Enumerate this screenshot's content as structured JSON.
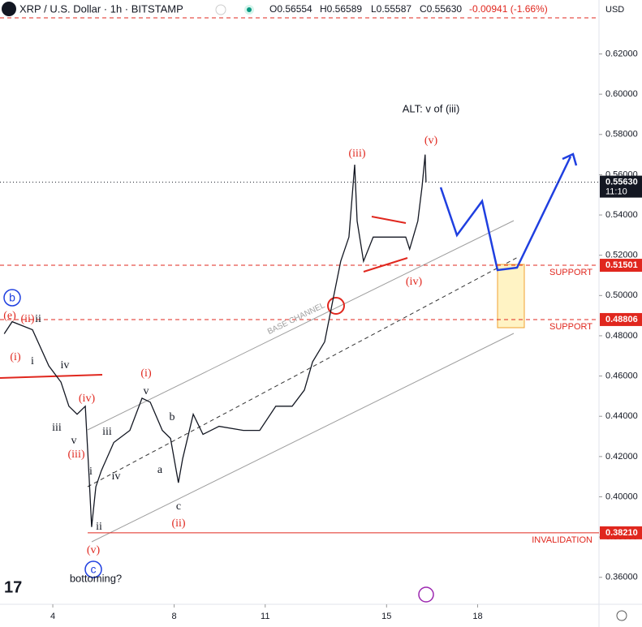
{
  "header": {
    "symbol": "XRP / U.S. Dollar · 1h · BITSTAMP",
    "ohlc": [
      "O0.56554",
      "H0.56589",
      "L0.55587",
      "C0.55630",
      "-0.00941 (-1.66%)"
    ],
    "currency": "USD"
  },
  "chart_data": {
    "type": "line",
    "color": "#131722",
    "x": [
      2.4,
      2.66,
      3.33,
      3.87,
      4.27,
      4.53,
      4.8,
      5.07,
      5.2,
      5.28,
      5.42,
      5.6,
      6.01,
      6.54,
      6.94,
      7.21,
      7.61,
      7.88,
      8.14,
      8.28,
      8.63,
      8.95,
      9.48,
      10.28,
      10.82,
      11.35,
      11.89,
      12.29,
      12.56,
      12.96,
      13.22,
      13.49,
      13.76,
      13.95,
      14.03,
      14.24,
      14.56,
      15.1,
      15.63,
      15.76,
      16.03,
      16.17,
      16.27,
      16.3
    ],
    "values": [
      0.481,
      0.487,
      0.483,
      0.465,
      0.457,
      0.445,
      0.441,
      0.445,
      0.409,
      0.385,
      0.405,
      0.413,
      0.427,
      0.433,
      0.449,
      0.447,
      0.433,
      0.429,
      0.407,
      0.419,
      0.441,
      0.431,
      0.435,
      0.433,
      0.433,
      0.445,
      0.445,
      0.453,
      0.467,
      0.477,
      0.497,
      0.517,
      0.529,
      0.565,
      0.537,
      0.517,
      0.529,
      0.529,
      0.529,
      0.523,
      0.537,
      0.554,
      0.57,
      0.5563
    ],
    "xlim": [
      2.26,
      22
    ],
    "xticks": [
      4,
      8,
      11,
      15,
      18
    ],
    "ylim": [
      0.3466,
      0.6468
    ],
    "yticks": [
      {
        "value": 0.36,
        "label": "0.36000"
      },
      {
        "value": 0.38,
        "label": "0.38000"
      },
      {
        "value": 0.4,
        "label": "0.40000"
      },
      {
        "value": 0.42,
        "label": "0.42000"
      },
      {
        "value": 0.44,
        "label": "0.44000"
      },
      {
        "value": 0.46,
        "label": "0.46000"
      },
      {
        "value": 0.48,
        "label": "0.48000"
      },
      {
        "value": 0.5,
        "label": "0.50000"
      },
      {
        "value": 0.52,
        "label": "0.52000"
      },
      {
        "value": 0.54,
        "label": "0.54000"
      },
      {
        "value": 0.56,
        "label": "0.56000"
      },
      {
        "value": 0.58,
        "label": "0.58000"
      },
      {
        "value": 0.6,
        "label": "0.60000"
      },
      {
        "value": 0.62,
        "label": "0.62000"
      }
    ],
    "last_price": {
      "value": 0.5563,
      "label": "0.55630",
      "countdown": "11:10"
    },
    "levels": [
      {
        "value": 0.51501,
        "label": "0.51501",
        "note": "SUPPORT"
      },
      {
        "value": 0.48806,
        "label": "0.48806",
        "note": "SUPPORT"
      },
      {
        "value": 0.3821,
        "label": "0.38210",
        "note": "INVALIDATION"
      }
    ],
    "annotations": [
      "b",
      "(e)",
      "(ii)",
      "ii",
      "(i)",
      "i",
      "iv",
      "(iv)",
      "iii",
      "v",
      "(iii)",
      "i",
      "iii",
      "iv",
      "(i)",
      "v",
      "b",
      "a",
      "c",
      "(ii)",
      "ii",
      "(v)",
      "c",
      "bottoming?",
      "(iii)",
      "(v)",
      "ALT: v of (iii)",
      "(iv)",
      "BASE CHANNEL"
    ]
  }
}
